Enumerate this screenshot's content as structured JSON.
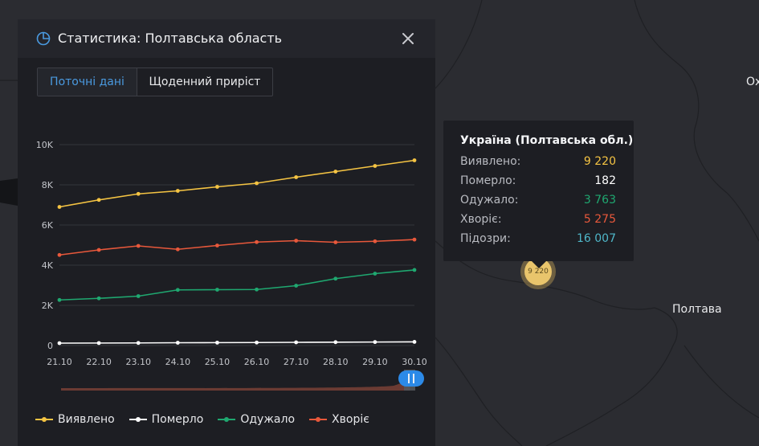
{
  "map": {
    "labels": {
      "poltava": "Полтава",
      "edge": "Ох"
    }
  },
  "cluster": {
    "label": "9 220"
  },
  "panel": {
    "title": "Статистика: Полтавська область",
    "tabs": {
      "current": "Поточні дані",
      "daily": "Щоденний приріст"
    }
  },
  "colors": {
    "detected": "#f5c443",
    "died": "#ffffff",
    "recovered": "#1fa870",
    "sick": "#e8583b",
    "suspected": "#4fb7c9",
    "accent": "#4a9ae0"
  },
  "icons": {
    "panel": "pie-chart-icon",
    "close": "close-icon",
    "slider": "range-handle-icon"
  },
  "chart_data": {
    "type": "line",
    "x": [
      "21.10",
      "22.10",
      "23.10",
      "24.10",
      "25.10",
      "26.10",
      "27.10",
      "28.10",
      "29.10",
      "30.10"
    ],
    "yticks": [
      "0",
      "2K",
      "4K",
      "6K",
      "8K",
      "10K"
    ],
    "ylim": [
      0,
      10000
    ],
    "grid": true,
    "legend_position": "bottom",
    "series": [
      {
        "key": "detected",
        "name": "Виявлено",
        "values": [
          6900,
          7250,
          7550,
          7700,
          7900,
          8080,
          8380,
          8660,
          8940,
          9220
        ]
      },
      {
        "key": "died",
        "name": "Померло",
        "values": [
          120,
          125,
          130,
          140,
          145,
          150,
          160,
          168,
          175,
          182
        ]
      },
      {
        "key": "recovered",
        "name": "Одужало",
        "values": [
          2270,
          2350,
          2460,
          2770,
          2780,
          2790,
          2980,
          3330,
          3580,
          3763
        ]
      },
      {
        "key": "sick",
        "name": "Хворіє",
        "values": [
          4510,
          4760,
          4960,
          4790,
          4980,
          5150,
          5220,
          5140,
          5190,
          5275
        ]
      }
    ]
  },
  "tooltip": {
    "title": "Україна (Полтавська обл.)",
    "rows": [
      {
        "label": "Виявлено:",
        "value": "9 220"
      },
      {
        "label": "Померло:",
        "value": "182"
      },
      {
        "label": "Одужало:",
        "value": "3 763"
      },
      {
        "label": "Хворіє:",
        "value": "5 275"
      },
      {
        "label": "Підозри:",
        "value": "16 007"
      }
    ]
  }
}
